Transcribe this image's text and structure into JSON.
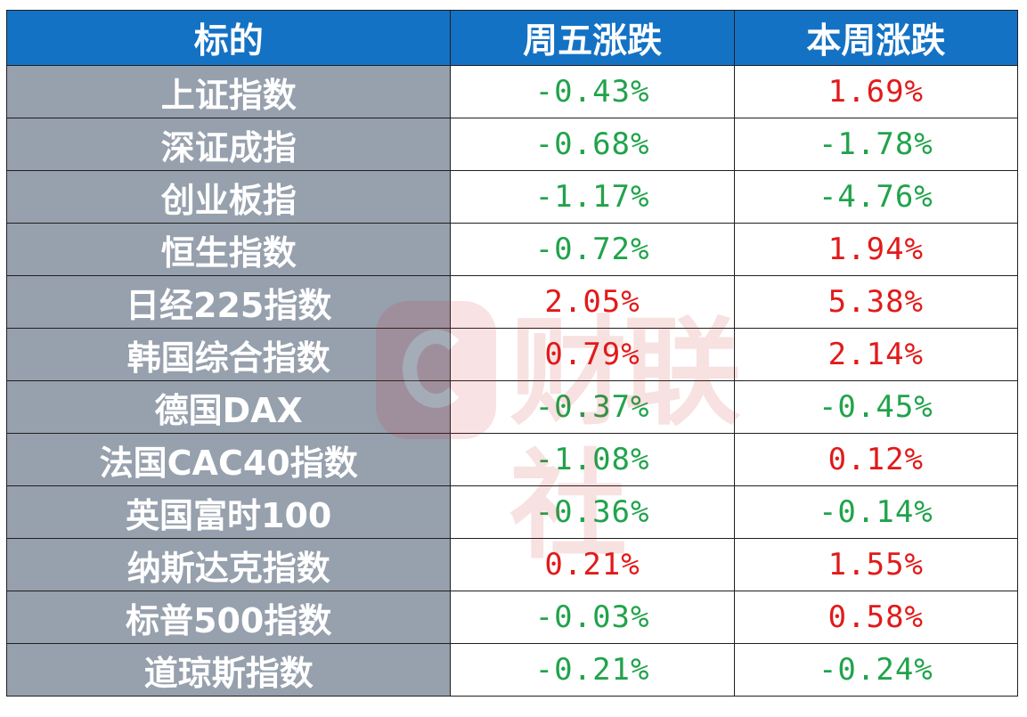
{
  "header": {
    "col_name": "标的",
    "col_friday": "周五涨跌",
    "col_week": "本周涨跌"
  },
  "rows": [
    {
      "name": "上证指数",
      "friday": "-0.43%",
      "week": "1.69%",
      "friday_dir": "neg",
      "week_dir": "pos"
    },
    {
      "name": "深证成指",
      "friday": "-0.68%",
      "week": "-1.78%",
      "friday_dir": "neg",
      "week_dir": "neg"
    },
    {
      "name": "创业板指",
      "friday": "-1.17%",
      "week": "-4.76%",
      "friday_dir": "neg",
      "week_dir": "neg"
    },
    {
      "name": "恒生指数",
      "friday": "-0.72%",
      "week": "1.94%",
      "friday_dir": "neg",
      "week_dir": "pos"
    },
    {
      "name": "日经225指数",
      "friday": "2.05%",
      "week": "5.38%",
      "friday_dir": "pos",
      "week_dir": "pos"
    },
    {
      "name": "韩国综合指数",
      "friday": "0.79%",
      "week": "2.14%",
      "friday_dir": "pos",
      "week_dir": "pos"
    },
    {
      "name": "德国DAX",
      "friday": "-0.37%",
      "week": "-0.45%",
      "friday_dir": "neg",
      "week_dir": "neg"
    },
    {
      "name": "法国CAC40指数",
      "friday": "-1.08%",
      "week": "0.12%",
      "friday_dir": "neg",
      "week_dir": "pos"
    },
    {
      "name": "英国富时100",
      "friday": "-0.36%",
      "week": "-0.14%",
      "friday_dir": "neg",
      "week_dir": "neg"
    },
    {
      "name": "纳斯达克指数",
      "friday": "0.21%",
      "week": "1.55%",
      "friday_dir": "pos",
      "week_dir": "pos"
    },
    {
      "name": "标普500指数",
      "friday": "-0.03%",
      "week": "0.58%",
      "friday_dir": "neg",
      "week_dir": "pos"
    },
    {
      "name": "道琼斯指数",
      "friday": "-0.21%",
      "week": "-0.24%",
      "friday_dir": "neg",
      "week_dir": "neg"
    }
  ],
  "watermark": {
    "text": "财联社",
    "icon": "cailianshe-logo-icon"
  },
  "colors": {
    "header_bg": "#1472c4",
    "name_bg": "#97a0ad",
    "up": "#e21a1a",
    "down": "#21a34b"
  }
}
